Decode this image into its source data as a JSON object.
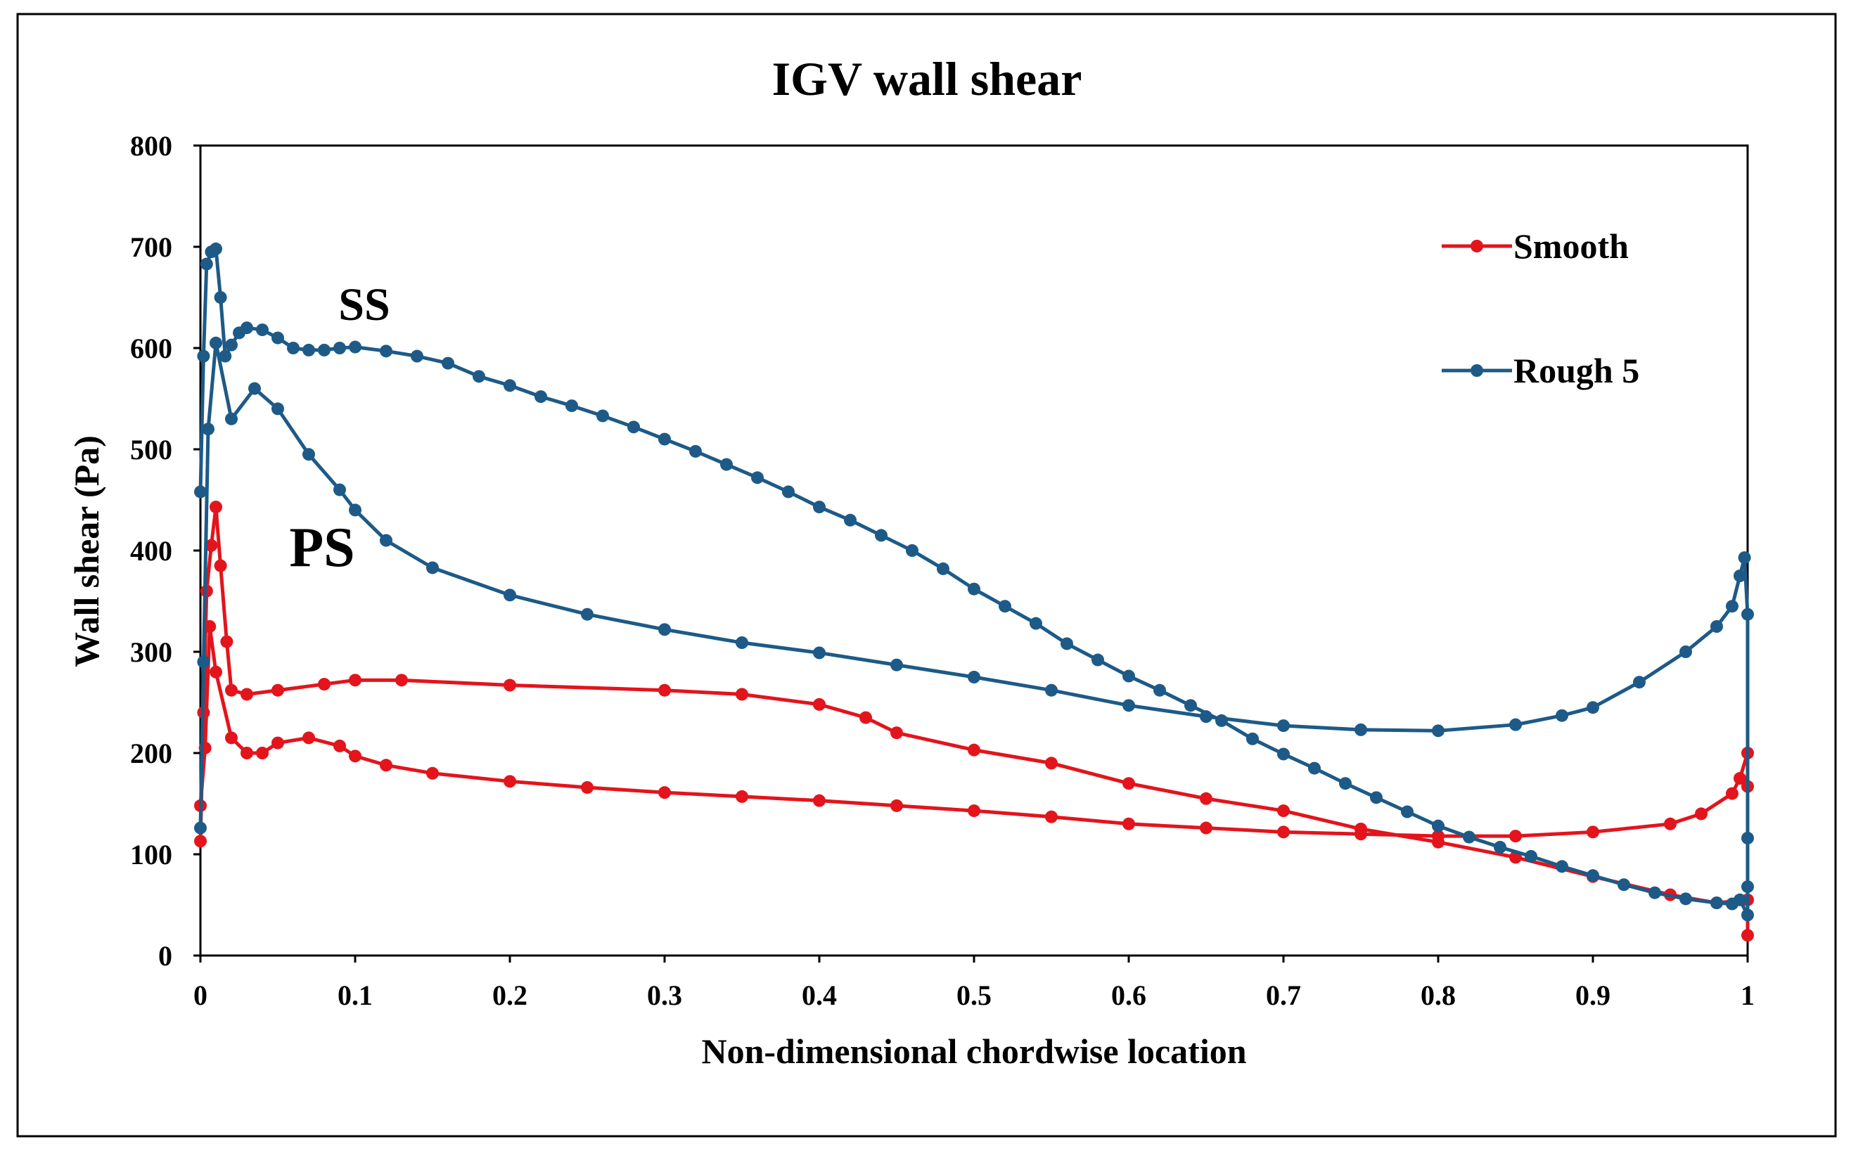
{
  "chart_data": {
    "type": "line",
    "title": "IGV wall shear",
    "xlabel": "Non-dimensional chordwise location",
    "ylabel": "Wall shear  (Pa)",
    "annotations": [
      "SS",
      "PS"
    ],
    "xlim": [
      0,
      1
    ],
    "xticks": [
      0,
      0.1,
      0.2,
      0.3,
      0.4,
      0.5,
      0.6,
      0.7,
      0.8,
      0.9,
      1
    ],
    "ylim": [
      0,
      800
    ],
    "yticks": [
      0,
      100,
      200,
      300,
      400,
      500,
      600,
      700,
      800
    ],
    "grid": false,
    "legend": "upper right",
    "markers": true,
    "series": [
      {
        "name": "Smooth",
        "color": "#e3141c",
        "x": [
          0,
          0.002,
          0.004,
          0.007,
          0.01,
          0.013,
          0.017,
          0.02,
          0.03,
          0.05,
          0.08,
          0.1,
          0.13,
          0.2,
          0.3,
          0.35,
          0.4,
          0.43,
          0.45,
          0.5,
          0.55,
          0.6,
          0.65,
          0.7,
          0.75,
          0.8,
          0.85,
          0.9,
          0.95,
          0.98,
          1,
          1,
          1,
          1,
          0.995,
          0.99,
          0.97,
          0.95,
          0.9,
          0.85,
          0.8,
          0.75,
          0.7,
          0.65,
          0.6,
          0.55,
          0.5,
          0.45,
          0.4,
          0.35,
          0.3,
          0.25,
          0.2,
          0.15,
          0.12,
          0.1,
          0.09,
          0.07,
          0.05,
          0.04,
          0.03,
          0.02,
          0.01,
          0.006,
          0.003,
          0
        ],
        "values": [
          113,
          240,
          360,
          405,
          443,
          385,
          310,
          262,
          258,
          262,
          268,
          272,
          272,
          267,
          262,
          258,
          248,
          235,
          220,
          203,
          190,
          170,
          155,
          143,
          125,
          112,
          97,
          78,
          60,
          52,
          55,
          20,
          167,
          200,
          175,
          160,
          140,
          130,
          122,
          118,
          118,
          120,
          122,
          126,
          130,
          137,
          143,
          148,
          153,
          157,
          161,
          166,
          172,
          180,
          188,
          197,
          207,
          215,
          210,
          200,
          200,
          215,
          280,
          325,
          205,
          148
        ]
      },
      {
        "name": "Rough 5",
        "color": "#1d5a87",
        "x": [
          0,
          0.002,
          0.004,
          0.007,
          0.01,
          0.013,
          0.016,
          0.02,
          0.025,
          0.03,
          0.04,
          0.05,
          0.06,
          0.07,
          0.08,
          0.09,
          0.1,
          0.12,
          0.14,
          0.16,
          0.18,
          0.2,
          0.22,
          0.24,
          0.26,
          0.28,
          0.3,
          0.32,
          0.34,
          0.36,
          0.38,
          0.4,
          0.42,
          0.44,
          0.46,
          0.48,
          0.5,
          0.52,
          0.54,
          0.56,
          0.58,
          0.6,
          0.62,
          0.64,
          0.66,
          0.68,
          0.7,
          0.72,
          0.74,
          0.76,
          0.78,
          0.8,
          0.82,
          0.84,
          0.86,
          0.88,
          0.9,
          0.92,
          0.94,
          0.96,
          0.98,
          0.99,
          0.995,
          1,
          1,
          1,
          1,
          0.998,
          0.995,
          0.99,
          0.98,
          0.96,
          0.93,
          0.9,
          0.88,
          0.85,
          0.8,
          0.75,
          0.7,
          0.65,
          0.6,
          0.55,
          0.5,
          0.45,
          0.4,
          0.35,
          0.3,
          0.25,
          0.2,
          0.15,
          0.12,
          0.1,
          0.09,
          0.07,
          0.05,
          0.035,
          0.02,
          0.01,
          0.005,
          0.002,
          0
        ],
        "values": [
          458,
          592,
          683,
          695,
          698,
          650,
          592,
          603,
          615,
          620,
          618,
          610,
          600,
          598,
          598,
          600,
          601,
          597,
          592,
          585,
          572,
          563,
          552,
          543,
          533,
          522,
          510,
          498,
          485,
          472,
          458,
          443,
          430,
          415,
          400,
          382,
          362,
          345,
          328,
          308,
          292,
          276,
          262,
          247,
          232,
          214,
          199,
          185,
          170,
          156,
          142,
          128,
          117,
          107,
          98,
          88,
          79,
          70,
          62,
          56,
          52,
          51,
          55,
          40,
          68,
          116,
          337,
          393,
          375,
          345,
          325,
          300,
          270,
          245,
          237,
          228,
          222,
          223,
          227,
          236,
          247,
          262,
          275,
          287,
          299,
          309,
          322,
          337,
          356,
          383,
          410,
          440,
          460,
          495,
          540,
          560,
          530,
          605,
          520,
          290,
          126
        ]
      }
    ]
  }
}
